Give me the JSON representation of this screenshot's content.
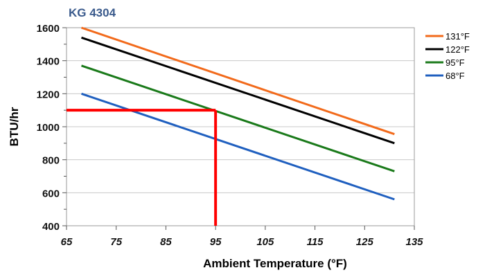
{
  "chart_data": {
    "type": "line",
    "title": "KG 4304",
    "xlabel": "Ambient Temperature (°F)",
    "ylabel": "BTU/hr",
    "xlim": [
      65,
      135
    ],
    "ylim": [
      400,
      1600
    ],
    "x_ticks": [
      65,
      75,
      85,
      95,
      105,
      115,
      125,
      135
    ],
    "y_ticks": [
      400,
      600,
      800,
      1000,
      1200,
      1400,
      1600
    ],
    "grid": "horizontal",
    "legend_position": "right",
    "series": [
      {
        "name": "131°F",
        "color": "#f26a1b",
        "x": [
          68,
          131
        ],
        "y": [
          1600,
          955
        ]
      },
      {
        "name": "122°F",
        "color": "#000000",
        "x": [
          68,
          131
        ],
        "y": [
          1540,
          900
        ]
      },
      {
        "name": "95°F",
        "color": "#1a7a1a",
        "x": [
          68,
          131
        ],
        "y": [
          1370,
          730
        ]
      },
      {
        "name": "68°F",
        "color": "#1f5fbf",
        "x": [
          68,
          131
        ],
        "y": [
          1200,
          560
        ]
      }
    ],
    "annotations": [
      {
        "type": "reference_line",
        "color": "#ff0000",
        "x": [
          65,
          95
        ],
        "y": [
          1100,
          1100
        ]
      },
      {
        "type": "reference_line",
        "color": "#ff0000",
        "x": [
          95,
          95
        ],
        "y": [
          1100,
          400
        ]
      }
    ]
  }
}
